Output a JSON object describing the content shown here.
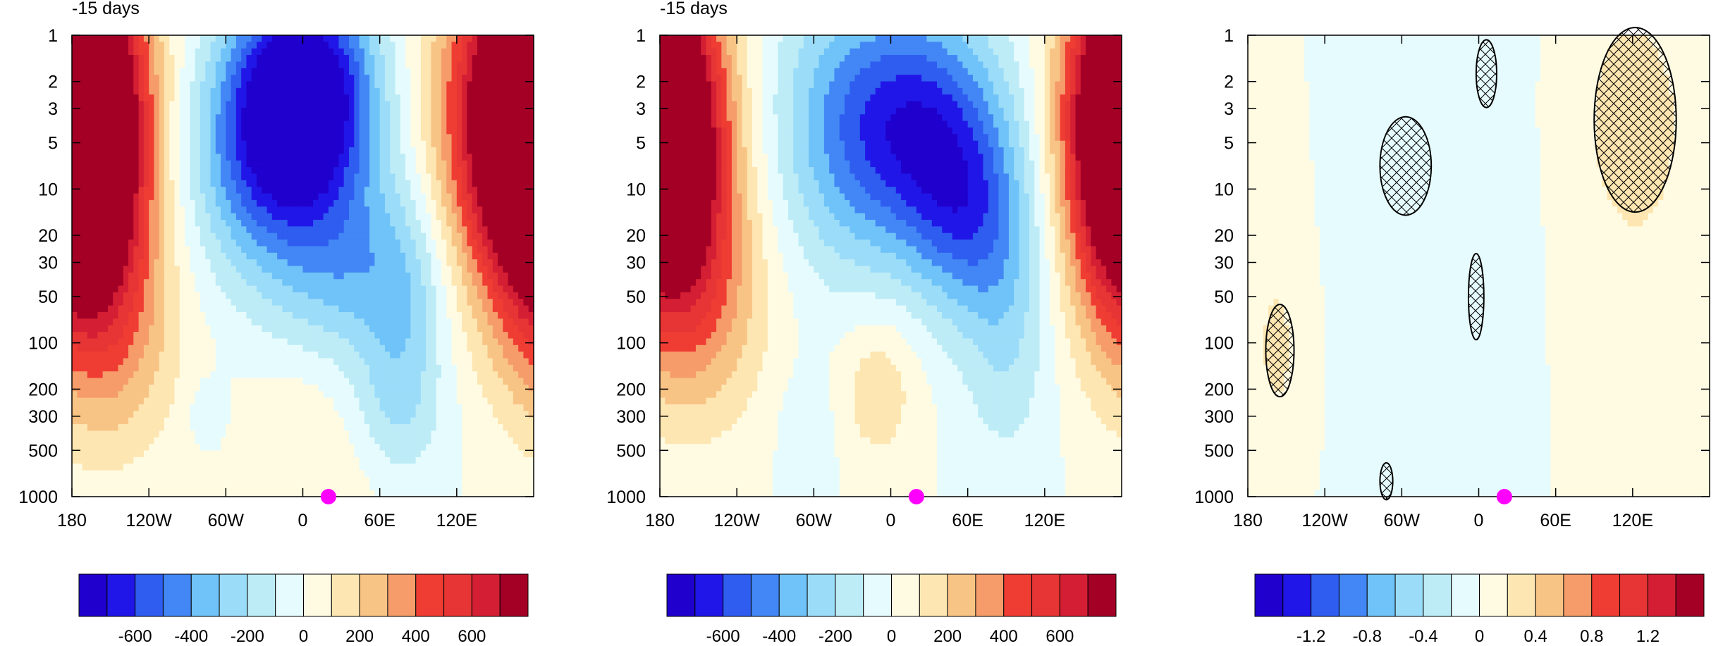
{
  "figure": {
    "background": "#ffffff",
    "palette": [
      "#1f00cc",
      "#2116e8",
      "#2e5df0",
      "#4287f5",
      "#6fc3f8",
      "#9bdcf9",
      "#bdecf7",
      "#e6fbfd",
      "#fffbe3",
      "#fde6b1",
      "#f8c485",
      "#f59c6a",
      "#ef3d33",
      "#e63534",
      "#d41e33",
      "#a40026"
    ]
  },
  "chart_data": [
    {
      "type": "heatmap",
      "title": "-15 days",
      "x_tick_labels": [
        "180",
        "120W",
        "60W",
        "0",
        "60E",
        "120E"
      ],
      "x_tick_lons": [
        -180,
        -120,
        -60,
        0,
        60,
        120
      ],
      "xlim": [
        -180,
        180
      ],
      "y_tick_labels": [
        "1",
        "2",
        "3",
        "5",
        "10",
        "20",
        "30",
        "50",
        "100",
        "200",
        "300",
        "500",
        "1000"
      ],
      "y_tick_values": [
        1,
        2,
        3,
        5,
        10,
        20,
        30,
        50,
        100,
        200,
        300,
        500,
        1000
      ],
      "ylim": [
        1000,
        1
      ],
      "y_scale": "log",
      "marker": {
        "lon": 20,
        "level": 1000,
        "color": "#ff00ff"
      },
      "colorbar": {
        "labels": [
          "-600",
          "-400",
          "-200",
          "0",
          "200",
          "400",
          "600"
        ],
        "label_positions": [
          2,
          4,
          6,
          8,
          10,
          12,
          14
        ]
      },
      "features": [
        {
          "lon": 0,
          "logp": 0.35,
          "sx": 38,
          "sy": 0.5,
          "amp": -1.05
        },
        {
          "lon": -25,
          "logp": 0.85,
          "sx": 45,
          "sy": 0.55,
          "amp": -0.55
        },
        {
          "lon": 40,
          "logp": 1.55,
          "sx": 40,
          "sy": 0.45,
          "amp": -0.35
        },
        {
          "lon": 80,
          "logp": 1.9,
          "sx": 22,
          "sy": 0.6,
          "amp": -0.25
        },
        {
          "lon": 60,
          "logp": 2.5,
          "sx": 30,
          "sy": 0.3,
          "amp": -0.2
        },
        {
          "lon": -170,
          "logp": 0.7,
          "sx": 32,
          "sy": 0.75,
          "amp": 1.15
        },
        {
          "lon": -150,
          "logp": 1.9,
          "sx": 38,
          "sy": 0.6,
          "amp": 0.35
        },
        {
          "lon": 170,
          "logp": 0.5,
          "sx": 42,
          "sy": 0.75,
          "amp": 1.15
        },
        {
          "lon": 25,
          "logp": 2.6,
          "sx": 40,
          "sy": 0.4,
          "amp": 0.18
        },
        {
          "lon": -75,
          "logp": 2.45,
          "sx": 10,
          "sy": 0.15,
          "amp": -0.12
        }
      ],
      "scale": 8,
      "hatch": []
    },
    {
      "type": "heatmap",
      "title": "-15 days",
      "x_tick_labels": [
        "180",
        "120W",
        "60W",
        "0",
        "60E",
        "120E"
      ],
      "x_tick_lons": [
        -180,
        -120,
        -60,
        0,
        60,
        120
      ],
      "xlim": [
        -180,
        180
      ],
      "y_tick_labels": [
        "1",
        "2",
        "3",
        "5",
        "10",
        "20",
        "30",
        "50",
        "100",
        "200",
        "300",
        "500",
        "1000"
      ],
      "y_tick_values": [
        1,
        2,
        3,
        5,
        10,
        20,
        30,
        50,
        100,
        200,
        300,
        500,
        1000
      ],
      "ylim": [
        1000,
        1
      ],
      "y_scale": "log",
      "marker": {
        "lon": 20,
        "level": 1000,
        "color": "#ff00ff"
      },
      "colorbar": {
        "labels": [
          "-600",
          "-400",
          "-200",
          "0",
          "200",
          "400",
          "600"
        ],
        "label_positions": [
          2,
          4,
          6,
          8,
          10,
          12,
          14
        ]
      },
      "features": [
        {
          "lon": 25,
          "logp": 0.6,
          "sx": 45,
          "sy": 0.55,
          "amp": -0.75
        },
        {
          "lon": 60,
          "logp": 1.2,
          "sx": 32,
          "sy": 0.45,
          "amp": -0.45
        },
        {
          "lon": -40,
          "logp": 0.6,
          "sx": 40,
          "sy": 0.7,
          "amp": -0.35
        },
        {
          "lon": 90,
          "logp": 1.9,
          "sx": 25,
          "sy": 0.6,
          "amp": -0.25
        },
        {
          "lon": -170,
          "logp": 0.7,
          "sx": 32,
          "sy": 0.75,
          "amp": 0.95
        },
        {
          "lon": -150,
          "logp": 1.7,
          "sx": 40,
          "sy": 0.6,
          "amp": 0.35
        },
        {
          "lon": 175,
          "logp": 0.5,
          "sx": 30,
          "sy": 0.7,
          "amp": 0.9
        },
        {
          "lon": -10,
          "logp": 2.3,
          "sx": 22,
          "sy": 0.35,
          "amp": 0.22
        },
        {
          "lon": -65,
          "logp": 2.6,
          "sx": 15,
          "sy": 0.3,
          "amp": -0.12
        }
      ],
      "scale": 8,
      "hatch": []
    },
    {
      "type": "heatmap",
      "title": "",
      "x_tick_labels": [
        "180",
        "120W",
        "60W",
        "0",
        "60E",
        "120E"
      ],
      "x_tick_lons": [
        -180,
        -120,
        -60,
        0,
        60,
        120
      ],
      "xlim": [
        -180,
        180
      ],
      "y_tick_labels": [
        "1",
        "2",
        "3",
        "5",
        "10",
        "20",
        "30",
        "50",
        "100",
        "200",
        "300",
        "500",
        "1000"
      ],
      "y_tick_values": [
        1,
        2,
        3,
        5,
        10,
        20,
        30,
        50,
        100,
        200,
        300,
        500,
        1000
      ],
      "ylim": [
        1000,
        1
      ],
      "y_scale": "log",
      "marker": {
        "lon": 20,
        "level": 1000,
        "color": "#ff00ff"
      },
      "colorbar": {
        "labels": [
          "-1.2",
          "-0.8",
          "-0.4",
          "0",
          "0.4",
          "0.8",
          "1.2"
        ],
        "label_positions": [
          2,
          4,
          6,
          8,
          10,
          12,
          14
        ]
      },
      "features": [
        {
          "lon": -35,
          "logp": 1.2,
          "sx": 45,
          "sy": 1.4,
          "amp": -0.3
        },
        {
          "lon": -57,
          "logp": 0.85,
          "sx": 16,
          "sy": 0.35,
          "amp": -0.2
        },
        {
          "lon": 5,
          "logp": 0.25,
          "sx": 8,
          "sy": 0.25,
          "amp": -0.25
        },
        {
          "lon": -2,
          "logp": 1.7,
          "sx": 7,
          "sy": 0.3,
          "amp": -0.28
        },
        {
          "lon": -70,
          "logp": 2.8,
          "sx": 10,
          "sy": 0.25,
          "amp": -0.2
        },
        {
          "lon": 120,
          "logp": 0.5,
          "sx": 30,
          "sy": 0.55,
          "amp": 0.85
        },
        {
          "lon": 125,
          "logp": 1.6,
          "sx": 35,
          "sy": 1.0,
          "amp": 0.3
        },
        {
          "lon": -155,
          "logp": 2.1,
          "sx": 15,
          "sy": 0.45,
          "amp": 0.55
        },
        {
          "lon": -165,
          "logp": 1.5,
          "sx": 18,
          "sy": 0.8,
          "amp": 0.25
        },
        {
          "lon": -40,
          "logp": 2.55,
          "sx": 15,
          "sy": 0.35,
          "amp": 0.18
        },
        {
          "lon": 150,
          "logp": 2.5,
          "sx": 30,
          "sy": 0.5,
          "amp": -0.05
        }
      ],
      "scale": 1.6,
      "hatch": [
        {
          "lon": -57,
          "logp": 0.85,
          "rx": 20,
          "ry": 0.32
        },
        {
          "lon": 6,
          "logp": 0.25,
          "rx": 8,
          "ry": 0.22
        },
        {
          "lon": -2,
          "logp": 1.7,
          "rx": 6,
          "ry": 0.28
        },
        {
          "lon": 122,
          "logp": 0.55,
          "rx": 32,
          "ry": 0.6
        },
        {
          "lon": -155,
          "logp": 2.05,
          "rx": 11,
          "ry": 0.3
        },
        {
          "lon": -72,
          "logp": 2.9,
          "rx": 5,
          "ry": 0.12
        }
      ]
    }
  ]
}
